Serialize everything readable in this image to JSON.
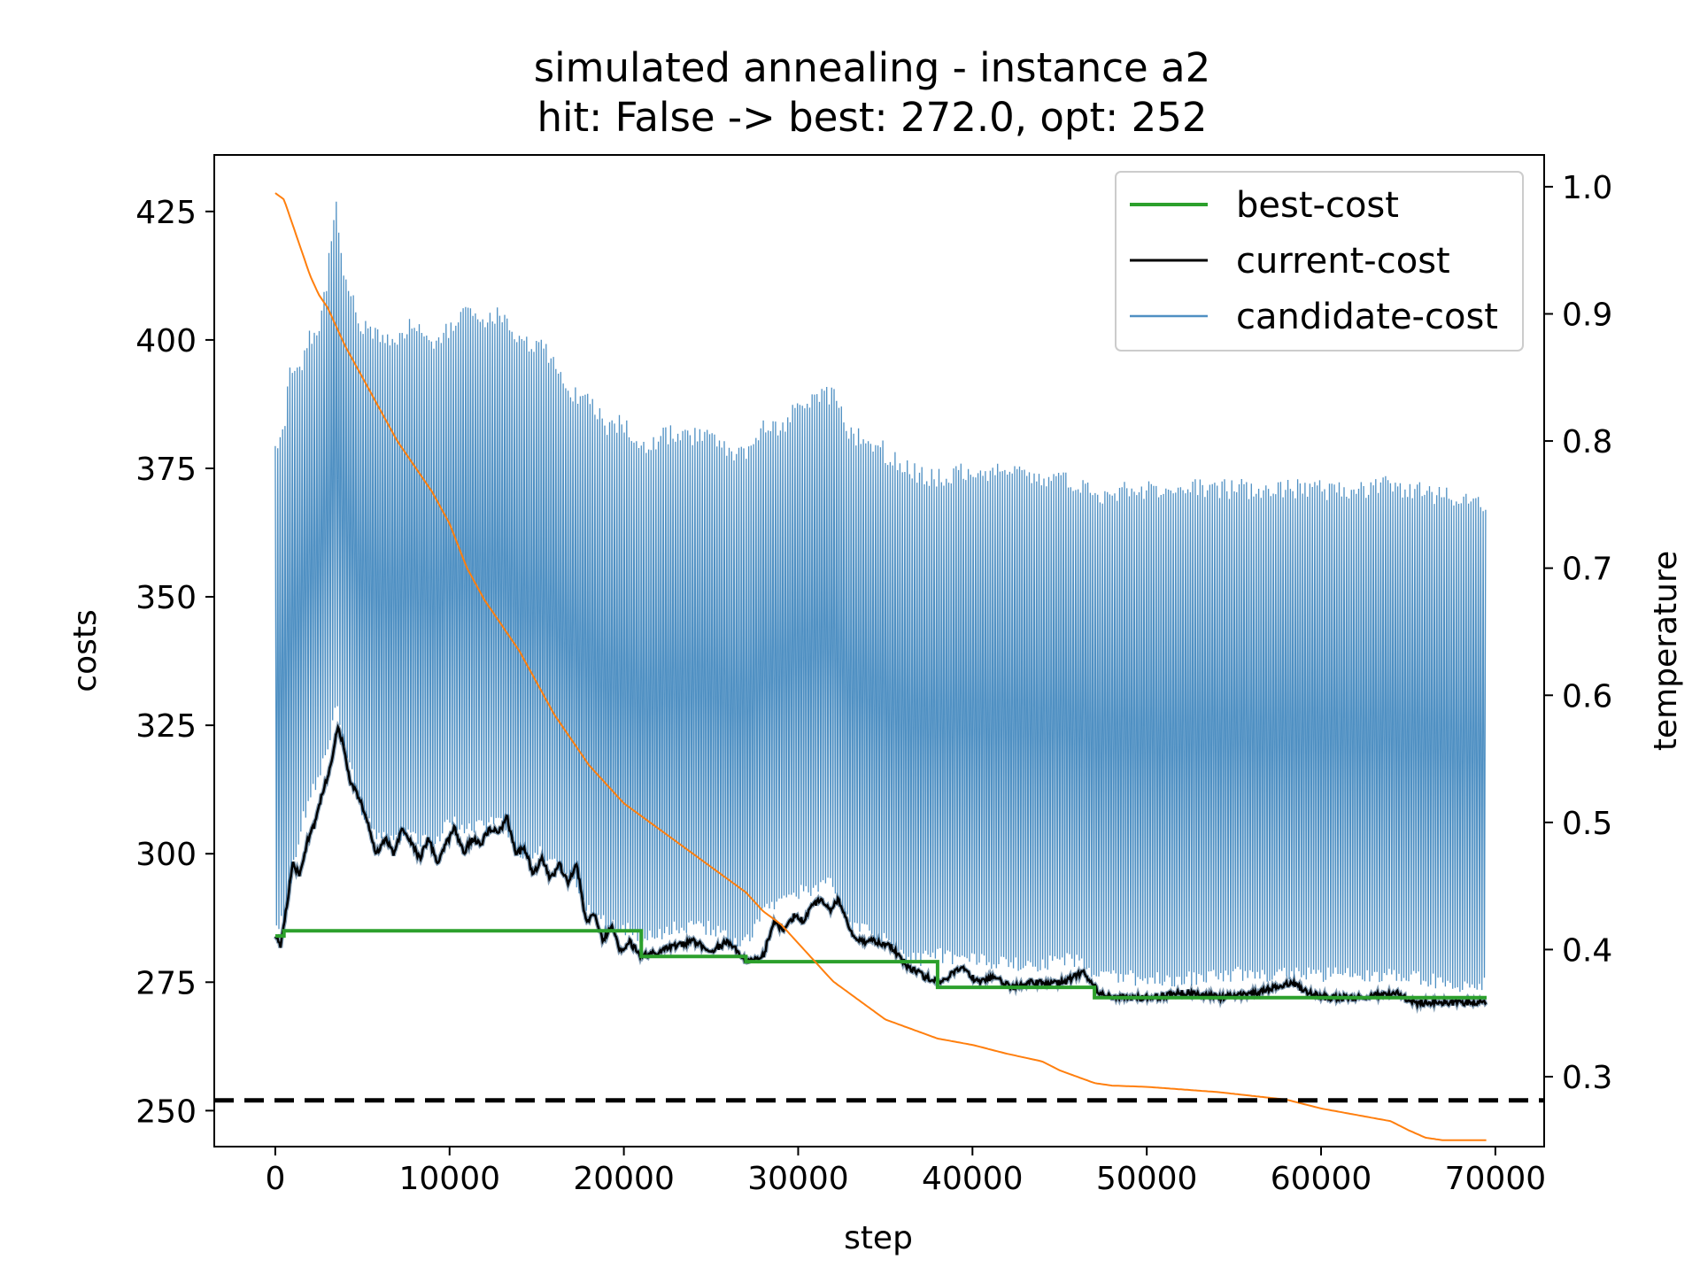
{
  "chart_data": {
    "type": "line",
    "title": "simulated annealing - instance a2",
    "subtitle": "hit: False -> best: 272.0, opt: 252",
    "xlabel": "step",
    "ylabel": "costs",
    "y2label": "temperature",
    "xlim": [
      -3500,
      72800
    ],
    "ylim": [
      243,
      436
    ],
    "y2lim": [
      0.245,
      1.025
    ],
    "xticks": [
      0,
      10000,
      20000,
      30000,
      40000,
      50000,
      60000,
      70000
    ],
    "yticks": [
      250,
      275,
      300,
      325,
      350,
      375,
      400,
      425
    ],
    "y2ticks": [
      0.3,
      0.4,
      0.5,
      0.6,
      0.7,
      0.8,
      0.9,
      1.0
    ],
    "y2tick_labels": [
      "0.3",
      "0.4",
      "0.5",
      "0.6",
      "0.7",
      "0.8",
      "0.9",
      "1.0"
    ],
    "legend_position": "top-right",
    "grid": false,
    "opt_line": {
      "value": 252,
      "color": "#000000",
      "style": "dashed"
    },
    "series": [
      {
        "name": "candidate-cost",
        "color": "#4f90c3",
        "axis": "left",
        "upper": [
          [
            0,
            382
          ],
          [
            500,
            383
          ],
          [
            800,
            395
          ],
          [
            1200,
            398
          ],
          [
            1600,
            397
          ],
          [
            2000,
            403
          ],
          [
            2500,
            402
          ],
          [
            3000,
            415
          ],
          [
            3500,
            428
          ],
          [
            4000,
            414
          ],
          [
            5000,
            404
          ],
          [
            6000,
            403
          ],
          [
            7000,
            402
          ],
          [
            8000,
            405
          ],
          [
            9000,
            402
          ],
          [
            10000,
            404
          ],
          [
            11000,
            407
          ],
          [
            12000,
            406
          ],
          [
            13000,
            407
          ],
          [
            14000,
            401
          ],
          [
            15000,
            401
          ],
          [
            16000,
            398
          ],
          [
            17000,
            392
          ],
          [
            18000,
            390
          ],
          [
            19000,
            385
          ],
          [
            20000,
            386
          ],
          [
            21000,
            381
          ],
          [
            22000,
            383
          ],
          [
            23000,
            384
          ],
          [
            24000,
            383
          ],
          [
            25000,
            384
          ],
          [
            26000,
            381
          ],
          [
            27000,
            379
          ],
          [
            28000,
            386
          ],
          [
            29000,
            384
          ],
          [
            30000,
            390
          ],
          [
            31000,
            391
          ],
          [
            32000,
            391
          ],
          [
            33000,
            383
          ],
          [
            34000,
            383
          ],
          [
            35000,
            380
          ],
          [
            36000,
            377
          ],
          [
            37000,
            376
          ],
          [
            38000,
            375
          ],
          [
            39000,
            376
          ],
          [
            40000,
            377
          ],
          [
            42000,
            376
          ],
          [
            44000,
            375
          ],
          [
            46000,
            374
          ],
          [
            47000,
            372
          ],
          [
            50000,
            373
          ],
          [
            52000,
            373
          ],
          [
            55000,
            373
          ],
          [
            57000,
            373
          ],
          [
            60000,
            373
          ],
          [
            62000,
            372
          ],
          [
            63000,
            374
          ],
          [
            65000,
            373
          ],
          [
            66000,
            372
          ],
          [
            68000,
            371
          ],
          [
            69500,
            369
          ]
        ],
        "lower": [
          [
            0,
            283
          ],
          [
            500,
            286
          ],
          [
            1000,
            296
          ],
          [
            1500,
            304
          ],
          [
            2000,
            310
          ],
          [
            2500,
            313
          ],
          [
            3000,
            319
          ],
          [
            3500,
            327
          ],
          [
            4000,
            318
          ],
          [
            5000,
            307
          ],
          [
            6000,
            301
          ],
          [
            7000,
            302
          ],
          [
            8000,
            302
          ],
          [
            9000,
            300
          ],
          [
            10000,
            305
          ],
          [
            11000,
            303
          ],
          [
            12000,
            304
          ],
          [
            13000,
            305
          ],
          [
            14000,
            299
          ],
          [
            15000,
            299
          ],
          [
            16000,
            297
          ],
          [
            17000,
            294
          ],
          [
            18000,
            287
          ],
          [
            19000,
            285
          ],
          [
            20000,
            284
          ],
          [
            21000,
            282
          ],
          [
            22000,
            283
          ],
          [
            23000,
            284
          ],
          [
            24000,
            284
          ],
          [
            25000,
            284
          ],
          [
            26000,
            282
          ],
          [
            27000,
            281
          ],
          [
            28000,
            287
          ],
          [
            29000,
            290
          ],
          [
            30000,
            291
          ],
          [
            31000,
            292
          ],
          [
            32000,
            293
          ],
          [
            33000,
            285
          ],
          [
            34000,
            284
          ],
          [
            35000,
            282
          ],
          [
            36000,
            279
          ],
          [
            37000,
            278
          ],
          [
            38000,
            279
          ],
          [
            39000,
            278
          ],
          [
            40000,
            278
          ],
          [
            42000,
            277
          ],
          [
            44000,
            277
          ],
          [
            46000,
            278
          ],
          [
            47000,
            275
          ],
          [
            50000,
            274
          ],
          [
            52000,
            274
          ],
          [
            55000,
            275
          ],
          [
            57000,
            275
          ],
          [
            60000,
            275
          ],
          [
            62000,
            275
          ],
          [
            63000,
            275
          ],
          [
            65000,
            275
          ],
          [
            66000,
            274
          ],
          [
            68000,
            273
          ],
          [
            69500,
            273
          ]
        ]
      },
      {
        "name": "current-cost",
        "color": "#000000",
        "axis": "left",
        "points": [
          [
            0,
            284
          ],
          [
            300,
            282
          ],
          [
            700,
            291
          ],
          [
            1000,
            298
          ],
          [
            1400,
            296
          ],
          [
            1800,
            302
          ],
          [
            2300,
            306
          ],
          [
            2700,
            312
          ],
          [
            3200,
            317
          ],
          [
            3600,
            325
          ],
          [
            3900,
            321
          ],
          [
            4300,
            314
          ],
          [
            4800,
            311
          ],
          [
            5300,
            306
          ],
          [
            5800,
            300
          ],
          [
            6300,
            303
          ],
          [
            6800,
            300
          ],
          [
            7300,
            305
          ],
          [
            7800,
            302
          ],
          [
            8300,
            299
          ],
          [
            8800,
            303
          ],
          [
            9300,
            298
          ],
          [
            9800,
            302
          ],
          [
            10300,
            305
          ],
          [
            10800,
            300
          ],
          [
            11300,
            303
          ],
          [
            11800,
            302
          ],
          [
            12300,
            305
          ],
          [
            12800,
            304
          ],
          [
            13300,
            307
          ],
          [
            13800,
            300
          ],
          [
            14300,
            301
          ],
          [
            14800,
            296
          ],
          [
            15300,
            299
          ],
          [
            15800,
            295
          ],
          [
            16300,
            298
          ],
          [
            16800,
            294
          ],
          [
            17300,
            298
          ],
          [
            17800,
            287
          ],
          [
            18300,
            288
          ],
          [
            18800,
            283
          ],
          [
            19300,
            286
          ],
          [
            19800,
            281
          ],
          [
            20300,
            283
          ],
          [
            21000,
            280
          ],
          [
            22000,
            281
          ],
          [
            23000,
            282
          ],
          [
            24000,
            283
          ],
          [
            25000,
            281
          ],
          [
            26000,
            283
          ],
          [
            27000,
            279
          ],
          [
            28000,
            280
          ],
          [
            28600,
            287
          ],
          [
            29200,
            285
          ],
          [
            29800,
            288
          ],
          [
            30300,
            287
          ],
          [
            30800,
            290
          ],
          [
            31300,
            291
          ],
          [
            31800,
            289
          ],
          [
            32300,
            291
          ],
          [
            32800,
            287
          ],
          [
            33300,
            283
          ],
          [
            34300,
            283
          ],
          [
            35300,
            282
          ],
          [
            36300,
            278
          ],
          [
            37300,
            276
          ],
          [
            38300,
            275
          ],
          [
            39300,
            278
          ],
          [
            40300,
            275
          ],
          [
            41300,
            276
          ],
          [
            42300,
            274
          ],
          [
            43300,
            275
          ],
          [
            44300,
            275
          ],
          [
            45300,
            275
          ],
          [
            46300,
            277
          ],
          [
            47300,
            273
          ],
          [
            48300,
            272
          ],
          [
            50300,
            272
          ],
          [
            52300,
            273
          ],
          [
            54300,
            272
          ],
          [
            56300,
            273
          ],
          [
            58300,
            275
          ],
          [
            59300,
            273
          ],
          [
            60300,
            272
          ],
          [
            62300,
            272
          ],
          [
            64300,
            273
          ],
          [
            65300,
            271
          ],
          [
            66300,
            271
          ],
          [
            69500,
            271
          ]
        ]
      },
      {
        "name": "best-cost",
        "color": "#2ca02c",
        "axis": "left",
        "points": [
          [
            0,
            284
          ],
          [
            500,
            284
          ],
          [
            500,
            285
          ],
          [
            21000,
            285
          ],
          [
            21000,
            280
          ],
          [
            27000,
            280
          ],
          [
            27000,
            279
          ],
          [
            38000,
            279
          ],
          [
            38000,
            274
          ],
          [
            47000,
            274
          ],
          [
            47000,
            272
          ],
          [
            69500,
            272
          ]
        ]
      },
      {
        "color": "#ff7f0e",
        "axis": "right",
        "points": [
          [
            0,
            0.995
          ],
          [
            500,
            0.99
          ],
          [
            1000,
            0.97
          ],
          [
            1500,
            0.95
          ],
          [
            2000,
            0.93
          ],
          [
            2500,
            0.915
          ],
          [
            3000,
            0.905
          ],
          [
            3500,
            0.89
          ],
          [
            4000,
            0.875
          ],
          [
            5000,
            0.85
          ],
          [
            6000,
            0.825
          ],
          [
            7000,
            0.8
          ],
          [
            8000,
            0.78
          ],
          [
            9000,
            0.76
          ],
          [
            10000,
            0.735
          ],
          [
            11000,
            0.7
          ],
          [
            12000,
            0.675
          ],
          [
            13000,
            0.655
          ],
          [
            14000,
            0.635
          ],
          [
            15000,
            0.61
          ],
          [
            16000,
            0.585
          ],
          [
            17000,
            0.565
          ],
          [
            18000,
            0.545
          ],
          [
            19000,
            0.53
          ],
          [
            20000,
            0.515
          ],
          [
            21000,
            0.505
          ],
          [
            22000,
            0.495
          ],
          [
            23000,
            0.485
          ],
          [
            24000,
            0.475
          ],
          [
            25000,
            0.465
          ],
          [
            26000,
            0.455
          ],
          [
            27000,
            0.445
          ],
          [
            28000,
            0.43
          ],
          [
            29000,
            0.42
          ],
          [
            30000,
            0.405
          ],
          [
            31000,
            0.39
          ],
          [
            32000,
            0.375
          ],
          [
            33000,
            0.365
          ],
          [
            34000,
            0.355
          ],
          [
            35000,
            0.345
          ],
          [
            36000,
            0.34
          ],
          [
            37000,
            0.335
          ],
          [
            38000,
            0.33
          ],
          [
            40000,
            0.325
          ],
          [
            42000,
            0.318
          ],
          [
            44000,
            0.312
          ],
          [
            45000,
            0.305
          ],
          [
            46000,
            0.3
          ],
          [
            47000,
            0.295
          ],
          [
            48000,
            0.293
          ],
          [
            50000,
            0.292
          ],
          [
            52000,
            0.29
          ],
          [
            54000,
            0.288
          ],
          [
            56000,
            0.285
          ],
          [
            58000,
            0.282
          ],
          [
            60000,
            0.275
          ],
          [
            62000,
            0.27
          ],
          [
            64000,
            0.265
          ],
          [
            65000,
            0.258
          ],
          [
            66000,
            0.252
          ],
          [
            67000,
            0.25
          ],
          [
            69500,
            0.25
          ]
        ]
      }
    ]
  }
}
